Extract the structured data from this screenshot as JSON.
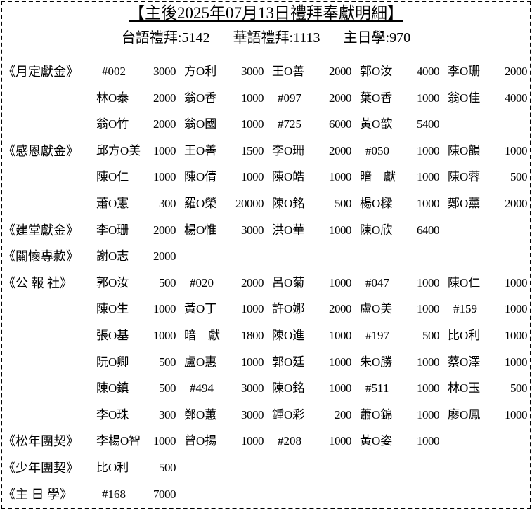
{
  "title": "【主後2025年07月13日禮拜奉獻明細】",
  "attendance": [
    {
      "label": "台語禮拜",
      "value": "5142"
    },
    {
      "label": "華語禮拜",
      "value": "1113"
    },
    {
      "label": "主日學",
      "value": "970"
    }
  ],
  "sections": [
    {
      "label": "《月定獻金》",
      "rows": [
        [
          [
            "#002",
            "3000"
          ],
          [
            "方O利",
            "3000"
          ],
          [
            "王O善",
            "2000"
          ],
          [
            "郭O汝",
            "4000"
          ],
          [
            "李O珊",
            "2000"
          ]
        ],
        [
          [
            "林O泰",
            "2000"
          ],
          [
            "翁O香",
            "1000"
          ],
          [
            "#097",
            "2000"
          ],
          [
            "葉O香",
            "1000"
          ],
          [
            "翁O佳",
            "4000"
          ]
        ],
        [
          [
            "翁O竹",
            "2000"
          ],
          [
            "翁O國",
            "1000"
          ],
          [
            "#725",
            "6000"
          ],
          [
            "黃O歆",
            "5400"
          ]
        ]
      ]
    },
    {
      "label": "《感恩獻金》",
      "rows": [
        [
          [
            "邱方O美",
            "1000"
          ],
          [
            "王O善",
            "1500"
          ],
          [
            "李O珊",
            "2000"
          ],
          [
            "#050",
            "1000"
          ],
          [
            "陳O韻",
            "1000"
          ]
        ],
        [
          [
            "陳O仁",
            "1000"
          ],
          [
            "陳O倩",
            "1000"
          ],
          [
            "陳O皓",
            "1000"
          ],
          [
            "暗　獻",
            "1000"
          ],
          [
            "陳O蓉",
            "500"
          ]
        ],
        [
          [
            "蕭O憲",
            "300"
          ],
          [
            "羅O榮",
            "20000"
          ],
          [
            "陳O銘",
            "500"
          ],
          [
            "楊O樑",
            "1000"
          ],
          [
            "鄭O薰",
            "2000"
          ]
        ]
      ]
    },
    {
      "label": "《建堂獻金》",
      "rows": [
        [
          [
            "李O珊",
            "2000"
          ],
          [
            "楊O惟",
            "3000"
          ],
          [
            "洪O華",
            "1000"
          ],
          [
            "陳O欣",
            "6400"
          ]
        ]
      ]
    },
    {
      "label": "《關懷專款》",
      "rows": [
        [
          [
            "謝O志",
            "2000"
          ]
        ]
      ]
    },
    {
      "label": "《公 報 社》",
      "rows": [
        [
          [
            "郭O汝",
            "500"
          ],
          [
            "#020",
            "2000"
          ],
          [
            "呂O菊",
            "1000"
          ],
          [
            "#047",
            "1000"
          ],
          [
            "陳O仁",
            "1000"
          ]
        ],
        [
          [
            "陳O生",
            "1000"
          ],
          [
            "黃O丁",
            "1000"
          ],
          [
            "許O娜",
            "2000"
          ],
          [
            "盧O美",
            "1000"
          ],
          [
            "#159",
            "1000"
          ]
        ],
        [
          [
            "張O基",
            "1000"
          ],
          [
            "暗　獻",
            "1800"
          ],
          [
            "陳O進",
            "1000"
          ],
          [
            "#197",
            "500"
          ],
          [
            "比O利",
            "1000"
          ]
        ],
        [
          [
            "阮O卿",
            "500"
          ],
          [
            "盧O惠",
            "1000"
          ],
          [
            "郭O廷",
            "1000"
          ],
          [
            "朱O勝",
            "1000"
          ],
          [
            "蔡O澤",
            "1000"
          ]
        ],
        [
          [
            "陳O鎮",
            "500"
          ],
          [
            "#494",
            "3000"
          ],
          [
            "陳O銘",
            "1000"
          ],
          [
            "#511",
            "1000"
          ],
          [
            "林O玉",
            "500"
          ]
        ],
        [
          [
            "李O珠",
            "300"
          ],
          [
            "鄭O蕙",
            "3000"
          ],
          [
            "鍾O彩",
            "200"
          ],
          [
            "蕭O錦",
            "1000"
          ],
          [
            "廖O鳳",
            "1000"
          ]
        ]
      ]
    },
    {
      "label": "《松年團契》",
      "rows": [
        [
          [
            "李楊O智",
            "1000"
          ],
          [
            "曾O揚",
            "1000"
          ],
          [
            "#208",
            "1000"
          ],
          [
            "黃O姿",
            "1000"
          ]
        ]
      ]
    },
    {
      "label": "《少年團契》",
      "rows": [
        [
          [
            "比O利",
            "500"
          ]
        ]
      ]
    },
    {
      "label": "《主 日 學》",
      "rows": [
        [
          [
            "#168",
            "7000"
          ]
        ]
      ]
    }
  ]
}
